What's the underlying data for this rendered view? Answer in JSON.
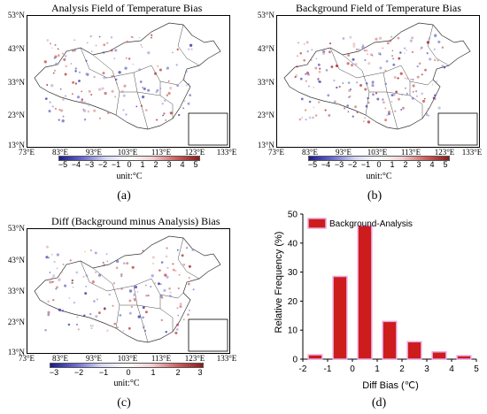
{
  "maps": [
    {
      "title": "Analysis Field of Temperature  Bias",
      "lat_labels": [
        "53°N",
        "43°N",
        "33°N",
        "23°N",
        "13°N"
      ],
      "lon_labels": [
        "73°E",
        "83°E",
        "93°E",
        "103°E",
        "113°E",
        "123°E",
        "133°E"
      ],
      "colorbar_ticks": [
        "−5",
        "−4",
        "−3",
        "−2",
        "−1",
        "0",
        "1",
        "2",
        "3",
        "4",
        "5"
      ],
      "colorbar_unit": "unit:°C",
      "caption": "(a)"
    },
    {
      "title": "Background Field of Temperature  Bias",
      "lat_labels": [
        "53°N",
        "43°N",
        "33°N",
        "23°N",
        "13°N"
      ],
      "lon_labels": [
        "73°E",
        "83°E",
        "93°E",
        "103°E",
        "113°E",
        "123°E",
        "133°E"
      ],
      "colorbar_ticks": [
        "−5",
        "−4",
        "−3",
        "−2",
        "−1",
        "0",
        "1",
        "2",
        "3",
        "4",
        "5"
      ],
      "colorbar_unit": "unit:°C",
      "caption": "(b)"
    },
    {
      "title": "Diff (Background minus Analysis)  Bias",
      "lat_labels": [
        "53°N",
        "43°N",
        "33°N",
        "23°N",
        "13°N"
      ],
      "lon_labels": [
        "73°E",
        "83°E",
        "93°E",
        "103°E",
        "113°E",
        "123°E",
        "133°E"
      ],
      "colorbar_ticks": [
        "−3",
        "−2",
        "−1",
        "0",
        "1",
        "2",
        "3"
      ],
      "colorbar_unit": "unit:°C",
      "caption": "(c)"
    }
  ],
  "colors": {
    "cold": "#3a3aa8",
    "warm": "#b02828",
    "bar_fill": "#cc1c1c",
    "bar_edge": "#e8a8e0"
  },
  "chart_data": {
    "type": "bar",
    "x": [
      -1.5,
      -0.5,
      0.5,
      1.5,
      2.5,
      3.5,
      4.5
    ],
    "values": [
      1.5,
      28.5,
      46,
      13,
      6,
      2.5,
      1.2
    ],
    "series": [
      {
        "name": "Background-Analysis",
        "values": [
          1.5,
          28.5,
          46,
          13,
          6,
          2.5,
          1.2
        ]
      }
    ],
    "xlabel": "Diff Bias (℃)",
    "ylabel": "Relative Frequency (%)",
    "xlim": [
      -2,
      5
    ],
    "ylim": [
      0,
      50
    ],
    "x_ticks": [
      "-2",
      "-1",
      "0",
      "1",
      "2",
      "3",
      "4",
      "5"
    ],
    "y_ticks": [
      "0",
      "10",
      "20",
      "30",
      "40",
      "50"
    ],
    "legend": "top-left",
    "grid": false,
    "caption": "(d)"
  }
}
